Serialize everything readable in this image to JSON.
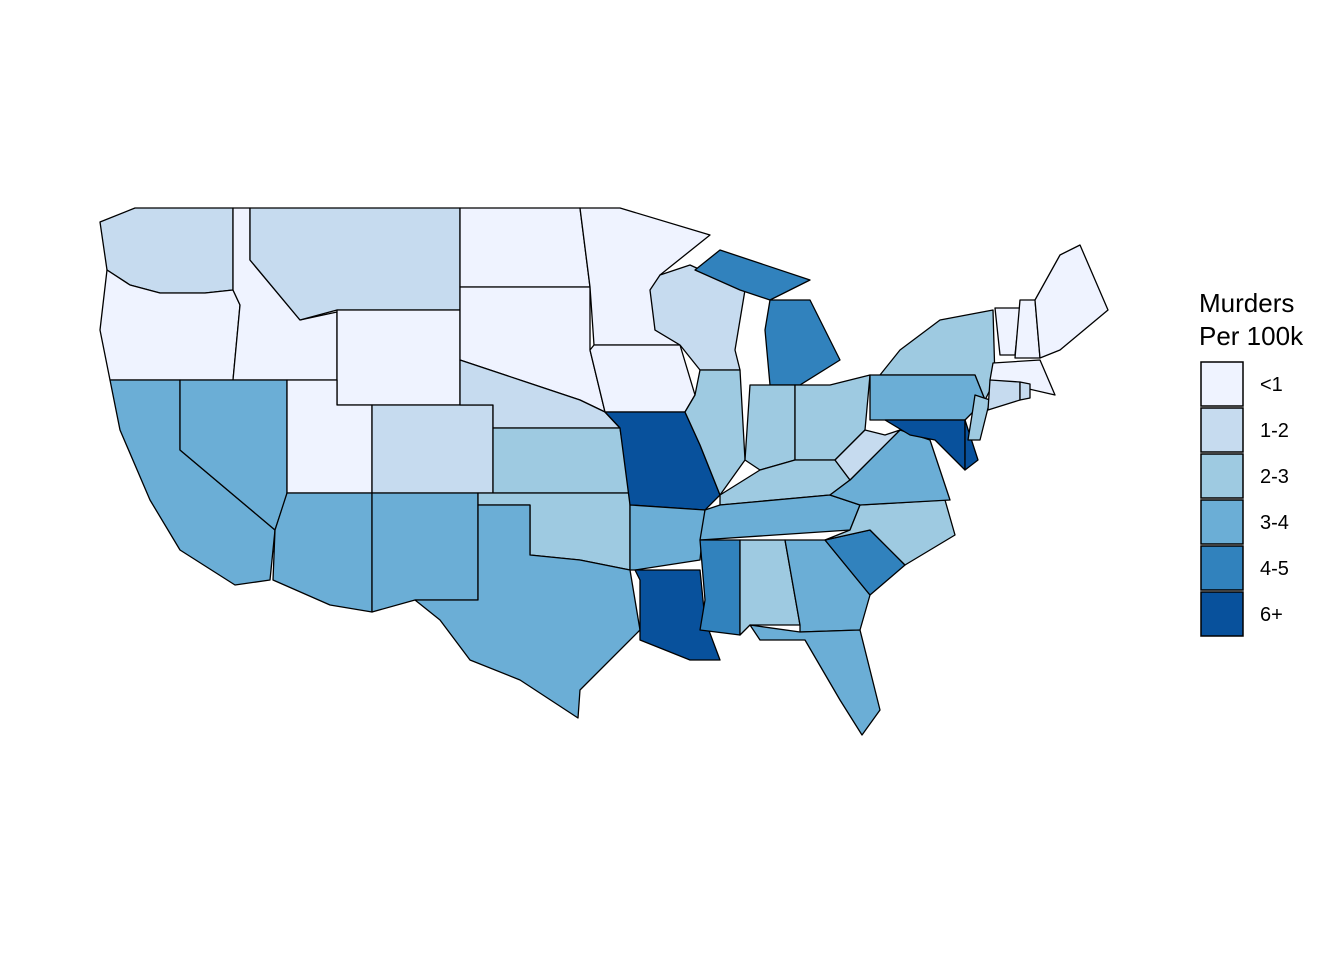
{
  "legend": {
    "title": [
      "Murders",
      "Per 100k"
    ],
    "items": [
      {
        "label": "<1",
        "color": "#eff3ff"
      },
      {
        "label": "1-2",
        "color": "#c6dbef"
      },
      {
        "label": "2-3",
        "color": "#9ecae1"
      },
      {
        "label": "3-4",
        "color": "#6baed6"
      },
      {
        "label": "4-5",
        "color": "#3182bd"
      },
      {
        "label": "6+",
        "color": "#08519c"
      }
    ]
  }
}
